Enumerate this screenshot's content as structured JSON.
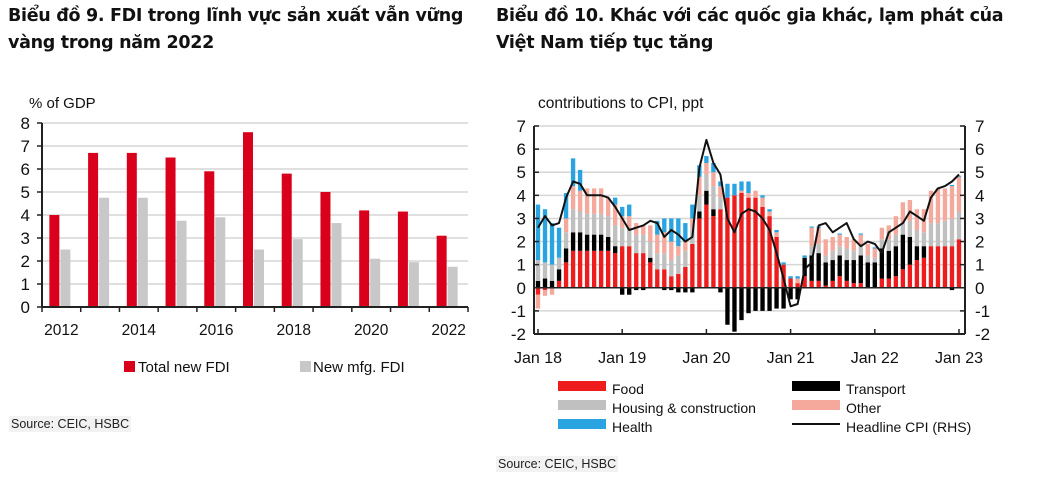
{
  "titles": {
    "chart9": "Biểu đồ 9. FDI trong lĩnh vực sản xuất vẫn vững vàng trong năm 2022",
    "chart10": "Biểu đồ 10. Khác với các quốc gia khác, lạm phát của Việt Nam tiếp tục tăng"
  },
  "sources": {
    "chart9": "Source: CEIC, HSBC",
    "chart10": "Source: CEIC, HSBC"
  },
  "colors": {
    "total_fdi": "#d9001b",
    "mfg_fdi": "#c8c8c8",
    "food": "#ee1c1c",
    "transport": "#000000",
    "housing": "#c0c0c0",
    "other": "#f4a99c",
    "health": "#2aa4e0",
    "headline": "#111111",
    "grid": "#d6d6d6"
  },
  "chart_data": [
    {
      "type": "bar",
      "title": "",
      "ylabel": "% of GDP",
      "xlabel": "",
      "ylim": [
        0,
        8
      ],
      "yticks": [
        "0",
        "1",
        "2",
        "3",
        "4",
        "5",
        "6",
        "7",
        "8"
      ],
      "categories": [
        "2012",
        "2013",
        "2014",
        "2015",
        "2016",
        "2017",
        "2018",
        "2019",
        "2020",
        "2021",
        "2022"
      ],
      "xtick_labels": [
        "2012",
        "2014",
        "2016",
        "2018",
        "2020",
        "2022"
      ],
      "series": [
        {
          "name": "Total new FDI",
          "values": [
            4.0,
            6.7,
            6.7,
            6.5,
            5.9,
            7.6,
            5.8,
            5.0,
            4.2,
            4.15,
            3.1
          ]
        },
        {
          "name": "New mfg. FDI",
          "values": [
            2.5,
            4.75,
            4.75,
            3.75,
            3.9,
            2.5,
            2.95,
            3.65,
            2.1,
            1.95,
            1.75
          ]
        }
      ],
      "legend": [
        "Total new FDI",
        "New mfg. FDI"
      ],
      "legend_position": "bottom",
      "grid": true
    },
    {
      "type": "bar",
      "stacked": true,
      "title": "contributions to CPI, ppt",
      "xlabel": "",
      "ylabel": "",
      "ylim": [
        -2,
        7
      ],
      "yticks": [
        "-2",
        "-1",
        "0",
        "1",
        "2",
        "3",
        "4",
        "5",
        "6",
        "7"
      ],
      "y2ticks": [
        "-2",
        "-1",
        "0",
        "1",
        "2",
        "3",
        "4",
        "5",
        "6",
        "7"
      ],
      "xtick_labels": [
        "Jan 18",
        "Jan 19",
        "Jan 20",
        "Jan 21",
        "Jan 22",
        "Jan 23"
      ],
      "months": 61,
      "series": [
        {
          "name": "Food",
          "key": "food",
          "values": [
            -0.3,
            -0.1,
            0.0,
            0.3,
            1.1,
            1.6,
            1.6,
            1.6,
            1.6,
            1.6,
            1.6,
            1.5,
            1.8,
            1.8,
            1.5,
            1.5,
            1.1,
            0.8,
            0.8,
            0.5,
            0.6,
            0.9,
            1.9,
            3.0,
            3.6,
            3.1,
            3.4,
            3.9,
            4.0,
            4.1,
            3.9,
            3.9,
            3.5,
            3.1,
            2.2,
            1.0,
            0.4,
            0.2,
            0.5,
            0.3,
            0.3,
            0.1,
            0.3,
            0.5,
            0.3,
            0.2,
            0.2,
            0.0,
            0.0,
            0.4,
            0.4,
            0.5,
            0.8,
            1.0,
            1.2,
            1.3,
            1.8,
            1.8,
            1.8,
            1.8,
            2.1
          ]
        },
        {
          "name": "Transport",
          "key": "transport",
          "values": [
            0.3,
            0.4,
            0.3,
            0.5,
            0.6,
            0.8,
            0.8,
            0.7,
            0.7,
            0.7,
            0.6,
            0.3,
            -0.3,
            -0.3,
            -0.1,
            -0.1,
            0.2,
            0.0,
            -0.1,
            -0.1,
            -0.2,
            -0.2,
            -0.2,
            0.3,
            0.6,
            0.3,
            -0.2,
            -1.6,
            -1.9,
            -1.4,
            -1.1,
            -1.0,
            -1.0,
            -1.0,
            -0.9,
            -0.9,
            -0.5,
            -0.5,
            0.8,
            1.1,
            1.2,
            1.0,
            0.9,
            0.9,
            0.9,
            1.0,
            1.2,
            1.1,
            1.1,
            1.3,
            1.2,
            1.3,
            1.5,
            1.2,
            0.6,
            0.5,
            0.0,
            0.0,
            0.0,
            -0.1,
            0.0
          ]
        },
        {
          "name": "Housing & construction",
          "key": "housing",
          "values": [
            0.9,
            0.7,
            0.7,
            0.5,
            0.7,
            1.0,
            0.9,
            0.9,
            0.9,
            0.9,
            0.9,
            0.9,
            0.8,
            0.8,
            0.8,
            0.8,
            0.7,
            0.7,
            0.7,
            0.7,
            0.8,
            0.7,
            0.7,
            0.7,
            0.7,
            1.0,
            0.5,
            0.0,
            0.0,
            0.0,
            0.0,
            0.0,
            0.0,
            0.0,
            0.0,
            0.0,
            0.0,
            0.0,
            0.0,
            0.4,
            0.4,
            0.3,
            0.4,
            0.4,
            0.5,
            0.4,
            0.4,
            0.3,
            0.2,
            0.4,
            0.5,
            0.5,
            0.5,
            0.7,
            0.7,
            0.6,
            1.0,
            1.0,
            1.1,
            1.2,
            1.2
          ]
        },
        {
          "name": "Other",
          "key": "other",
          "values": [
            -0.6,
            -0.25,
            -0.3,
            0.0,
            0.6,
            1.0,
            0.9,
            1.1,
            1.1,
            1.1,
            0.8,
            0.9,
            0.5,
            0.5,
            0.5,
            0.4,
            0.7,
            0.8,
            0.9,
            0.8,
            0.4,
            0.4,
            0.4,
            0.8,
            0.5,
            0.6,
            0.5,
            0.0,
            0.0,
            0.1,
            0.2,
            0.3,
            0.4,
            0.2,
            0.2,
            0.0,
            0.0,
            0.2,
            0.0,
            0.8,
            0.7,
            0.7,
            0.6,
            0.5,
            0.5,
            0.5,
            0.5,
            0.5,
            0.4,
            0.5,
            0.6,
            0.8,
            0.9,
            0.9,
            0.9,
            1.0,
            1.4,
            1.5,
            1.4,
            1.4,
            1.5
          ]
        },
        {
          "name": "Health",
          "key": "health",
          "values": [
            2.4,
            2.3,
            1.8,
            1.3,
            1.1,
            1.2,
            0.9,
            0.0,
            0.0,
            0.0,
            0.0,
            0.3,
            0.4,
            0.5,
            0.0,
            0.0,
            0.0,
            0.6,
            0.6,
            1.0,
            1.2,
            0.8,
            0.6,
            0.5,
            0.3,
            0.4,
            0.2,
            0.6,
            0.5,
            0.4,
            0.5,
            0.0,
            0.1,
            0.1,
            0.1,
            0.1,
            0.1,
            0.1,
            0.1,
            0.05,
            0.05,
            0.0,
            0.0,
            0.05,
            0.0,
            0.0,
            0.05,
            0.0,
            0.05,
            0.0,
            0.0,
            0.0,
            0.0,
            0.0,
            0.0,
            0.0,
            0.0,
            0.0,
            0.0,
            0.05,
            0.05
          ]
        },
        {
          "name": "Headline CPI (RHS)",
          "key": "headline",
          "type": "line",
          "values": [
            2.6,
            3.1,
            2.7,
            2.8,
            3.9,
            4.6,
            4.5,
            4.0,
            4.0,
            4.0,
            3.9,
            3.5,
            3.0,
            2.5,
            2.6,
            2.7,
            2.9,
            2.8,
            2.2,
            2.5,
            2.3,
            2.0,
            2.2,
            5.2,
            6.4,
            5.4,
            4.9,
            3.0,
            2.4,
            3.2,
            3.4,
            3.3,
            3.0,
            2.5,
            1.5,
            0.4,
            -0.8,
            -0.7,
            0.8,
            1.1,
            2.7,
            2.8,
            2.4,
            2.6,
            2.8,
            2.1,
            1.8,
            2.0,
            1.9,
            1.5,
            2.4,
            2.6,
            2.8,
            3.3,
            3.1,
            2.9,
            3.9,
            4.3,
            4.4,
            4.6,
            4.9
          ]
        }
      ],
      "legend": [
        "Food",
        "Transport",
        "Housing & construction",
        "Other",
        "Health",
        "Headline CPI (RHS)"
      ],
      "legend_position": "bottom",
      "grid": true
    }
  ]
}
